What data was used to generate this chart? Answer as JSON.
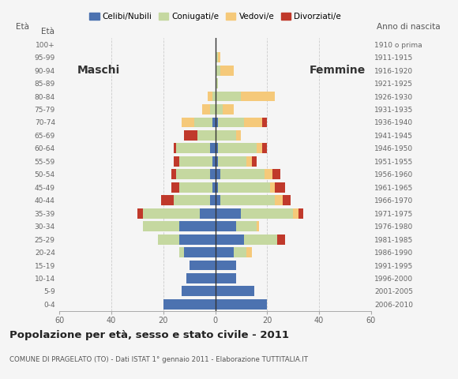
{
  "age_groups": [
    "0-4",
    "5-9",
    "10-14",
    "15-19",
    "20-24",
    "25-29",
    "30-34",
    "35-39",
    "40-44",
    "45-49",
    "50-54",
    "55-59",
    "60-64",
    "65-69",
    "70-74",
    "75-79",
    "80-84",
    "85-89",
    "90-94",
    "95-99",
    "100+"
  ],
  "birth_years": [
    "2006-2010",
    "2001-2005",
    "1996-2000",
    "1991-1995",
    "1986-1990",
    "1981-1985",
    "1976-1980",
    "1971-1975",
    "1966-1970",
    "1961-1965",
    "1956-1960",
    "1951-1955",
    "1946-1950",
    "1941-1945",
    "1936-1940",
    "1931-1935",
    "1926-1930",
    "1921-1925",
    "1916-1920",
    "1911-1915",
    "1910 o prima"
  ],
  "male": {
    "celibi": [
      20,
      13,
      11,
      10,
      12,
      14,
      14,
      6,
      2,
      1,
      2,
      1,
      2,
      0,
      1,
      0,
      0,
      0,
      0,
      0,
      0
    ],
    "coniugati": [
      0,
      0,
      0,
      0,
      2,
      8,
      14,
      22,
      14,
      13,
      13,
      13,
      13,
      7,
      7,
      2,
      1,
      0,
      0,
      0,
      0
    ],
    "vedovi": [
      0,
      0,
      0,
      0,
      0,
      0,
      0,
      0,
      0,
      0,
      0,
      0,
      0,
      0,
      5,
      3,
      2,
      0,
      0,
      0,
      0
    ],
    "divorziati": [
      0,
      0,
      0,
      0,
      0,
      0,
      0,
      2,
      5,
      3,
      2,
      2,
      1,
      5,
      0,
      0,
      0,
      0,
      0,
      0,
      0
    ]
  },
  "female": {
    "nubili": [
      20,
      15,
      8,
      8,
      7,
      11,
      8,
      10,
      2,
      1,
      2,
      1,
      1,
      0,
      1,
      0,
      0,
      0,
      0,
      0,
      0
    ],
    "coniugate": [
      0,
      0,
      0,
      0,
      5,
      13,
      8,
      20,
      21,
      20,
      17,
      11,
      15,
      8,
      10,
      3,
      10,
      1,
      2,
      1,
      0
    ],
    "vedove": [
      0,
      0,
      0,
      0,
      2,
      0,
      1,
      2,
      3,
      2,
      3,
      2,
      2,
      2,
      7,
      4,
      13,
      0,
      5,
      1,
      0
    ],
    "divorziate": [
      0,
      0,
      0,
      0,
      0,
      3,
      0,
      2,
      3,
      4,
      3,
      2,
      2,
      0,
      2,
      0,
      0,
      0,
      0,
      0,
      0
    ]
  },
  "colors": {
    "celibi": "#4c72b0",
    "coniugati": "#c5d8a0",
    "vedovi": "#f5c97a",
    "divorziati": "#c0392b"
  },
  "title": "Popolazione per età, sesso e stato civile - 2011",
  "subtitle": "COMUNE DI PRAGELATO (TO) - Dati ISTAT 1° gennaio 2011 - Elaborazione TUTTITALIA.IT",
  "xlabel_left": "Maschi",
  "xlabel_right": "Femmine",
  "eta_label": "Età",
  "anno_label": "Anno di nascita",
  "xlim": 60,
  "background_color": "#f5f5f5",
  "legend_labels": [
    "Celibi/Nubili",
    "Coniugati/e",
    "Vedovi/e",
    "Divorziati/e"
  ]
}
